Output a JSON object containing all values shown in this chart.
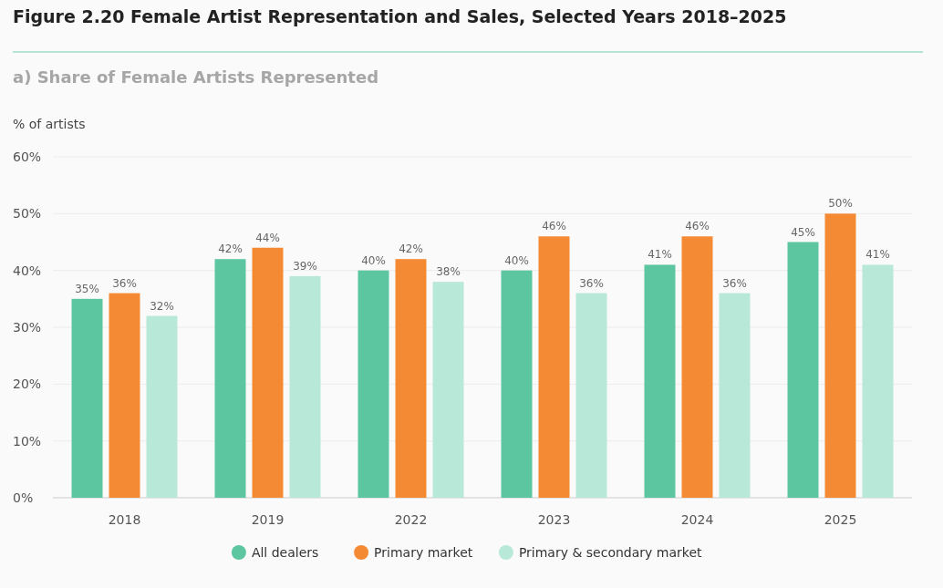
{
  "chart_data": {
    "type": "bar",
    "title": "Figure 2.20 Female Artist Representation and Sales, Selected Years 2018–2025",
    "subtitle": "a) Share of Female Artists Represented",
    "ylabel": "% of artists",
    "categories": [
      "2018",
      "2019",
      "2022",
      "2023",
      "2024",
      "2025"
    ],
    "series": [
      {
        "name": "All dealers",
        "color": "#5cc6a0",
        "values": [
          35,
          42,
          40,
          40,
          41,
          45
        ],
        "value_labels": [
          "35%",
          "42%",
          "40%",
          "40%",
          "41%",
          "45%"
        ]
      },
      {
        "name": "Primary market",
        "color": "#f58a35",
        "values": [
          36,
          44,
          42,
          46,
          46,
          50
        ],
        "value_labels": [
          "36%",
          "44%",
          "42%",
          "46%",
          "46%",
          "50%"
        ]
      },
      {
        "name": "Primary & secondary market",
        "color": "#b8e8d8",
        "values": [
          32,
          39,
          38,
          36,
          36,
          41
        ],
        "value_labels": [
          "32%",
          "39%",
          "38%",
          "36%",
          "36%",
          "41%"
        ]
      }
    ],
    "ylim": [
      0,
      60
    ],
    "yticks": [
      {
        "value": 0,
        "label": "0%"
      },
      {
        "value": 10,
        "label": "10%"
      },
      {
        "value": 20,
        "label": "20%"
      },
      {
        "value": 30,
        "label": "30%"
      },
      {
        "value": 40,
        "label": "40%"
      },
      {
        "value": 50,
        "label": "50%"
      },
      {
        "value": 60,
        "label": "60%"
      }
    ],
    "grid": "y",
    "legend": "bottom"
  }
}
